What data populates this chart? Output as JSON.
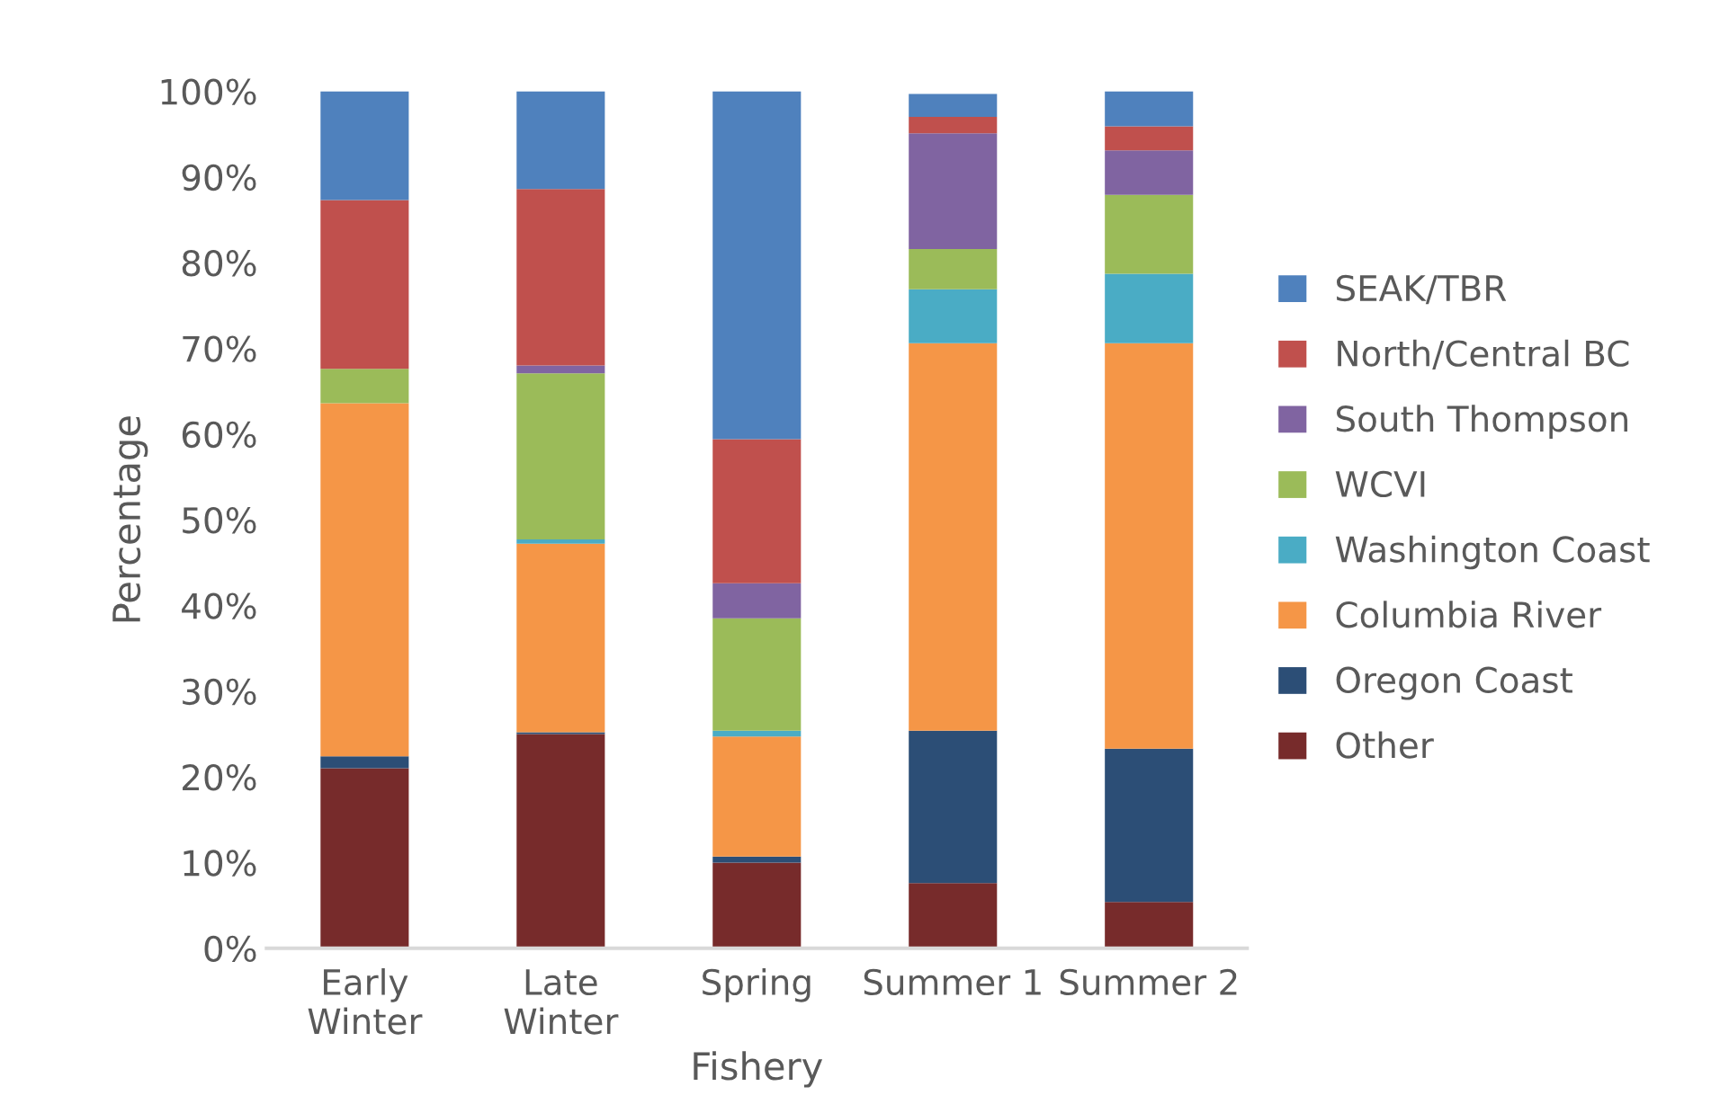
{
  "chart_data": {
    "type": "bar",
    "stacked": true,
    "xlabel": "Fishery",
    "ylabel": "Percentage",
    "categories": [
      "Early\nWinter",
      "Late\nWinter",
      "Spring",
      "Summer 1",
      "Summer 2"
    ],
    "series": [
      {
        "name": "Other",
        "color": "#772b2b",
        "values": [
          21.0,
          25.0,
          10.0,
          7.6,
          5.4
        ]
      },
      {
        "name": "Oregon Coast",
        "color": "#2c4e76",
        "values": [
          1.4,
          0.2,
          0.7,
          17.8,
          17.9
        ]
      },
      {
        "name": "Columbia River",
        "color": "#f59647",
        "values": [
          41.2,
          22.0,
          14.0,
          45.2,
          47.3
        ]
      },
      {
        "name": "Washington Coast",
        "color": "#4aacc5",
        "values": [
          0,
          0.5,
          0.7,
          6.3,
          8.1
        ]
      },
      {
        "name": "WCVI",
        "color": "#9bbb59",
        "values": [
          4.0,
          19.4,
          13.1,
          4.7,
          9.2
        ]
      },
      {
        "name": "South Thompson",
        "color": "#8064a1",
        "values": [
          0,
          0.9,
          4.1,
          13.5,
          5.2
        ]
      },
      {
        "name": "North/Central BC",
        "color": "#c0504d",
        "values": [
          19.7,
          20.6,
          16.8,
          1.9,
          2.8
        ]
      },
      {
        "name": "SEAK/TBR",
        "color": "#4f81bd",
        "values": [
          12.7,
          11.4,
          40.6,
          2.7,
          4.1
        ]
      }
    ],
    "ylim": [
      0,
      100
    ],
    "yticks": [
      {
        "value": 0,
        "label": "0%"
      },
      {
        "value": 10,
        "label": "10%"
      },
      {
        "value": 20,
        "label": "20%"
      },
      {
        "value": 30,
        "label": "30%"
      },
      {
        "value": 40,
        "label": "40%"
      },
      {
        "value": 50,
        "label": "50%"
      },
      {
        "value": 60,
        "label": "60%"
      },
      {
        "value": 70,
        "label": "70%"
      },
      {
        "value": 80,
        "label": "80%"
      },
      {
        "value": 90,
        "label": "90%"
      },
      {
        "value": 100,
        "label": "100%"
      }
    ],
    "grid": false,
    "legend": "right"
  }
}
